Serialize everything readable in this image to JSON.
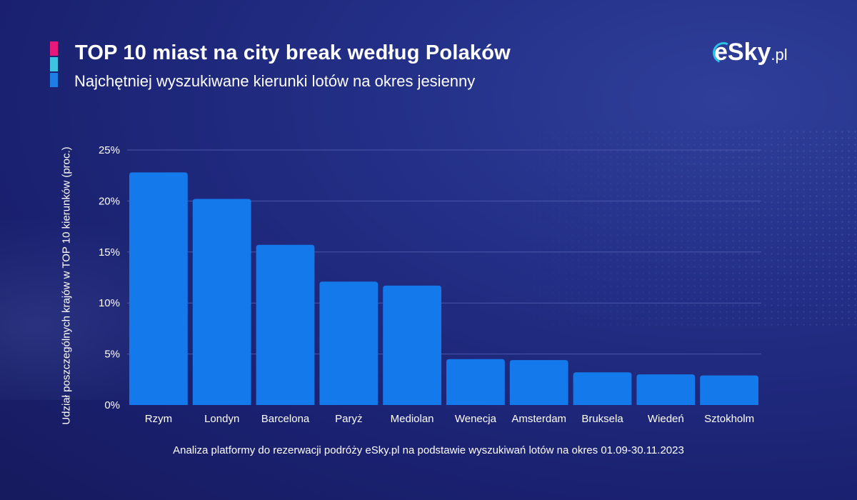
{
  "header": {
    "title": "TOP 10 miast na city break według Polaków",
    "subtitle": "Najchętniej wyszukiwane kierunki lotów na okres jesienny",
    "accent_colors": [
      "#e8197a",
      "#3cc4e0",
      "#1f7de6"
    ]
  },
  "logo": {
    "main": "eSky",
    "suffix": ".pl"
  },
  "footer": {
    "note": "Analiza platformy do rezerwacji podróży eSky.pl na podstawie wyszukiwań lotów na okres 01.09-30.11.2023"
  },
  "chart_data": {
    "type": "bar",
    "title": "TOP 10 miast na city break według Polaków",
    "subtitle": "Najchętniej wyszukiwane kierunki lotów na okres jesienny",
    "ylabel": "Udział poszczególnych krajów w TOP 10 kierunków (proc.)",
    "xlabel": "",
    "categories": [
      "Rzym",
      "Londyn",
      "Barcelona",
      "Paryż",
      "Mediolan",
      "Wenecja",
      "Amsterdam",
      "Bruksela",
      "Wiedeń",
      "Sztokholm"
    ],
    "values": [
      22.8,
      20.2,
      15.7,
      12.1,
      11.7,
      4.5,
      4.4,
      3.2,
      3.0,
      2.9
    ],
    "ylim": [
      0,
      25
    ],
    "yticks": [
      0,
      5,
      10,
      15,
      20,
      25
    ],
    "ytick_labels": [
      "0%",
      "5%",
      "10%",
      "15%",
      "20%",
      "25%"
    ],
    "grid": true,
    "bar_color": "#1479ea",
    "grid_color": "#4a56a8"
  }
}
